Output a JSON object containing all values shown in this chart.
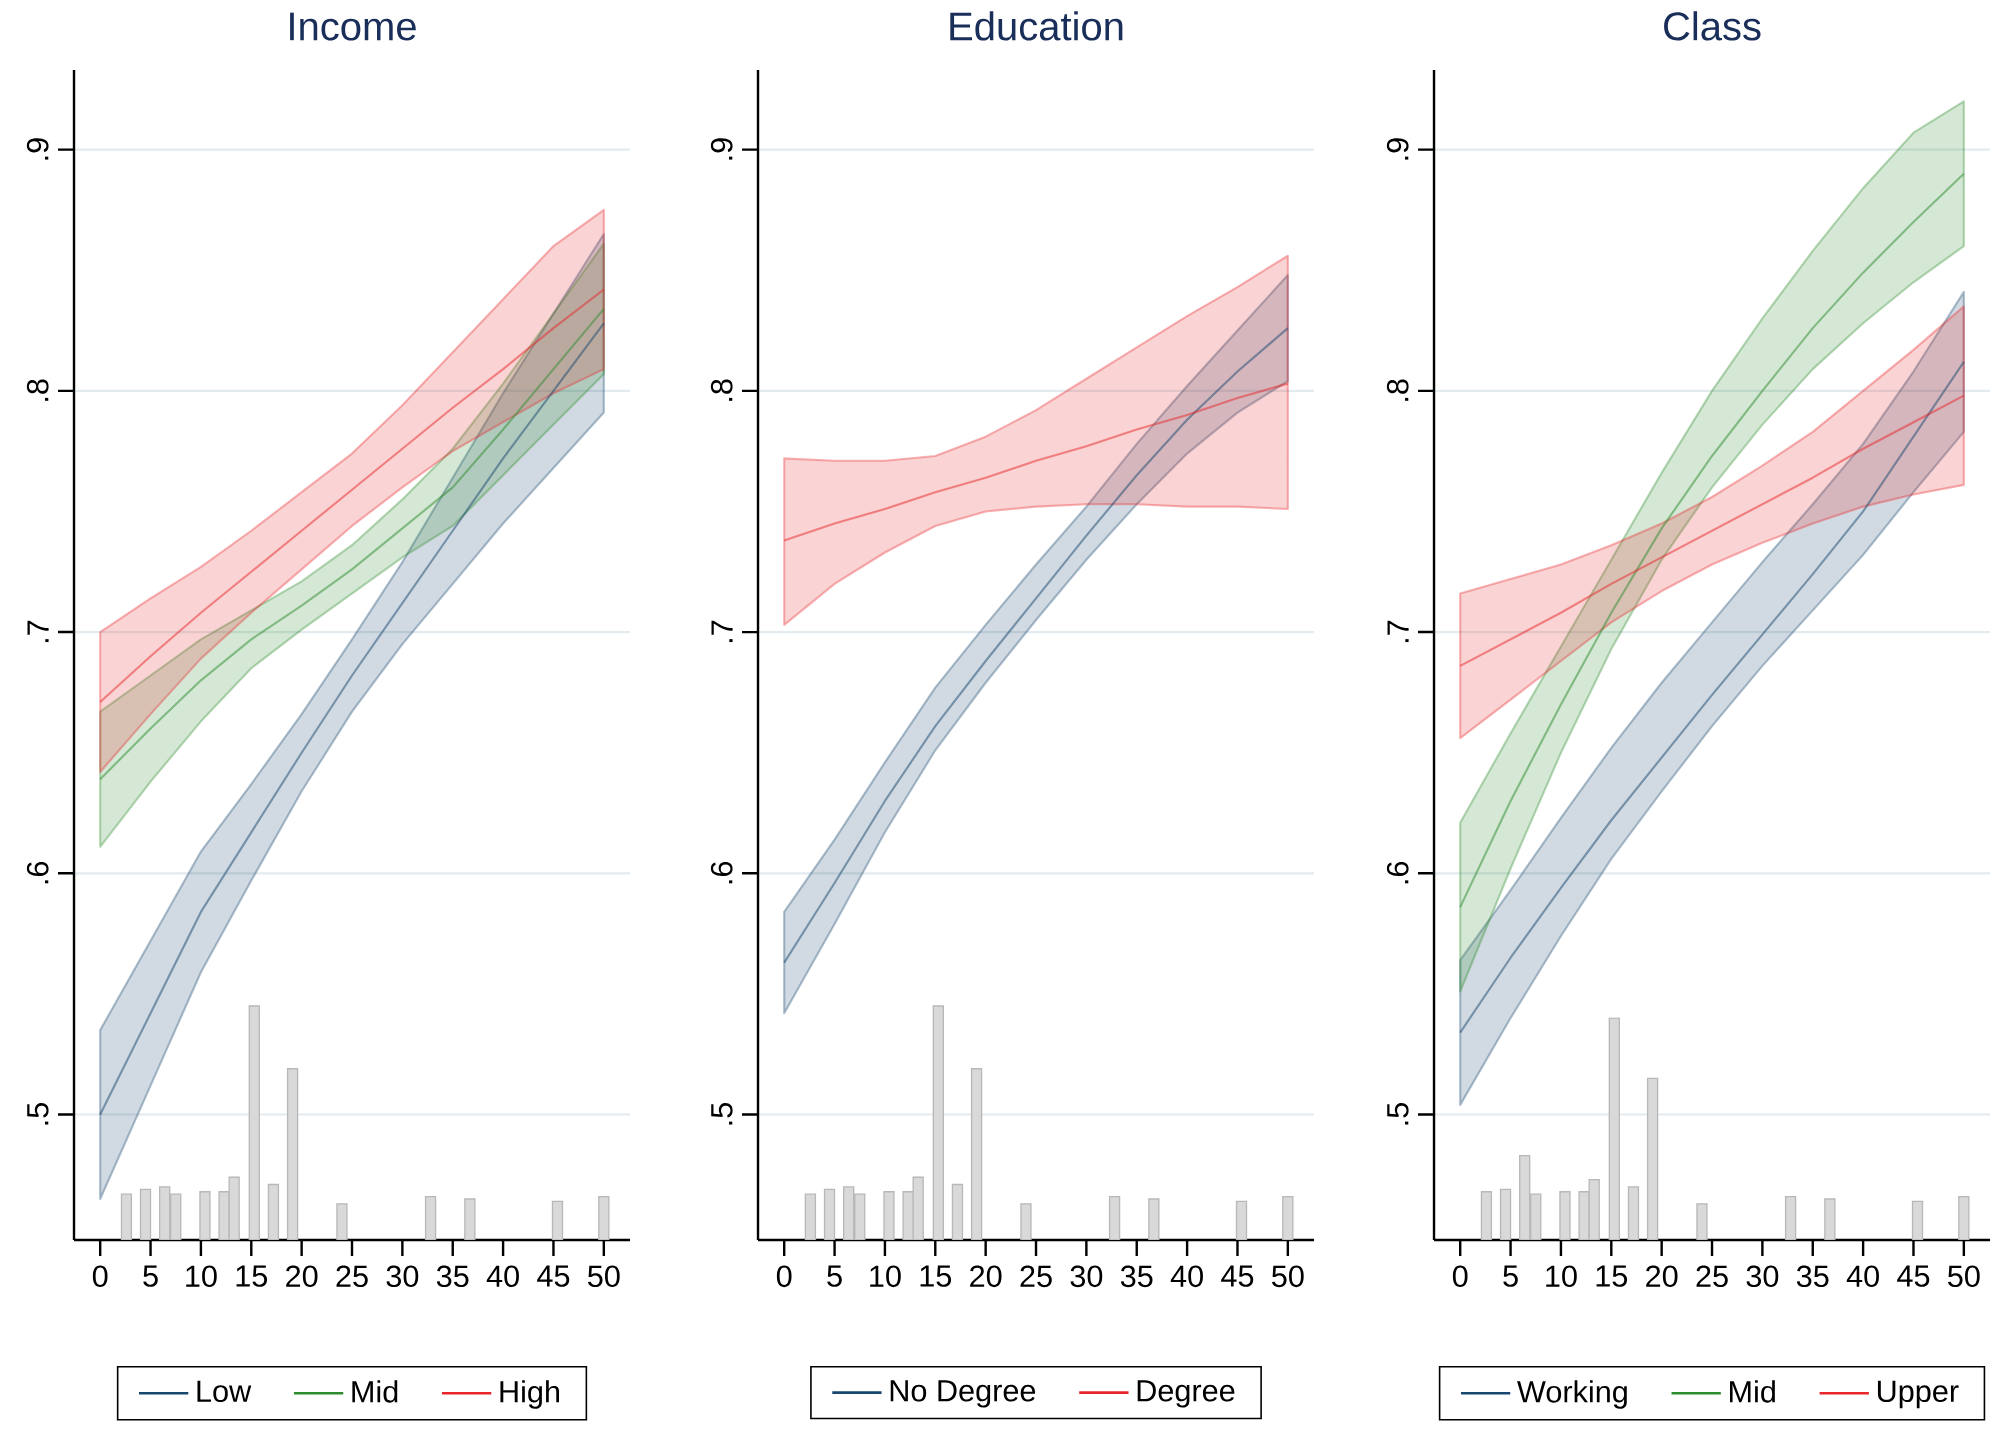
{
  "chart_data": [
    {
      "type": "line",
      "title": "Income",
      "x": [
        0,
        5,
        10,
        15,
        20,
        25,
        30,
        35,
        40,
        45,
        50
      ],
      "xlim": [
        -2.6,
        52.6
      ],
      "ylim": [
        0.448,
        0.933
      ],
      "xticks": [
        0,
        5,
        10,
        15,
        20,
        25,
        30,
        35,
        40,
        45,
        50
      ],
      "yticks": [
        {
          "value": 0.5,
          "label": ".5"
        },
        {
          "value": 0.6,
          "label": ".6"
        },
        {
          "value": 0.7,
          "label": ".7"
        },
        {
          "value": 0.8,
          "label": ".8"
        },
        {
          "value": 0.9,
          "label": ".9"
        }
      ],
      "grid": "y",
      "legend": "bottom",
      "series": [
        {
          "type": "bar",
          "color": "#d9d9d9",
          "x": [
            2.6,
            4.5,
            6.4,
            7.5,
            10.4,
            12.3,
            13.3,
            15.3,
            17.2,
            19.1,
            24,
            32.8,
            36.7,
            45.4,
            50
          ],
          "values": [
            0.467,
            0.469,
            0.47,
            0.467,
            0.468,
            0.468,
            0.474,
            0.545,
            0.471,
            0.519,
            0.463,
            0.466,
            0.465,
            0.464,
            0.466
          ]
        },
        {
          "name": "Low",
          "color": "#1a476f",
          "values": [
            0.5,
            0.542,
            0.584,
            0.617,
            0.65,
            0.682,
            0.712,
            0.742,
            0.772,
            0.8,
            0.828
          ],
          "lower": [
            0.465,
            0.512,
            0.559,
            0.597,
            0.634,
            0.667,
            0.695,
            0.72,
            0.745,
            0.768,
            0.791
          ],
          "upper": [
            0.535,
            0.572,
            0.609,
            0.637,
            0.666,
            0.697,
            0.729,
            0.764,
            0.799,
            0.832,
            0.865
          ]
        },
        {
          "name": "Mid",
          "color": "#2e8b2e",
          "values": [
            0.639,
            0.66,
            0.68,
            0.697,
            0.711,
            0.726,
            0.743,
            0.76,
            0.784,
            0.809,
            0.834
          ],
          "lower": [
            0.611,
            0.638,
            0.663,
            0.685,
            0.701,
            0.716,
            0.731,
            0.744,
            0.765,
            0.786,
            0.807
          ],
          "upper": [
            0.667,
            0.682,
            0.697,
            0.709,
            0.721,
            0.736,
            0.755,
            0.776,
            0.803,
            0.832,
            0.861
          ]
        },
        {
          "name": "High",
          "color": "#e8262a",
          "values": [
            0.671,
            0.69,
            0.708,
            0.725,
            0.742,
            0.759,
            0.776,
            0.793,
            0.809,
            0.826,
            0.842
          ],
          "lower": [
            0.642,
            0.666,
            0.689,
            0.708,
            0.726,
            0.744,
            0.76,
            0.775,
            0.787,
            0.799,
            0.809
          ],
          "upper": [
            0.7,
            0.714,
            0.727,
            0.742,
            0.758,
            0.774,
            0.794,
            0.816,
            0.838,
            0.86,
            0.875
          ]
        }
      ]
    },
    {
      "type": "line",
      "title": "Education",
      "x": [
        0,
        5,
        10,
        15,
        20,
        25,
        30,
        35,
        40,
        45,
        50
      ],
      "xlim": [
        -2.6,
        52.6
      ],
      "ylim": [
        0.448,
        0.933
      ],
      "xticks": [
        0,
        5,
        10,
        15,
        20,
        25,
        30,
        35,
        40,
        45,
        50
      ],
      "yticks": [
        {
          "value": 0.5,
          "label": ".5"
        },
        {
          "value": 0.6,
          "label": ".6"
        },
        {
          "value": 0.7,
          "label": ".7"
        },
        {
          "value": 0.8,
          "label": ".8"
        },
        {
          "value": 0.9,
          "label": ".9"
        }
      ],
      "grid": "y",
      "legend": "bottom",
      "series": [
        {
          "type": "bar",
          "color": "#d9d9d9",
          "x": [
            2.6,
            4.5,
            6.4,
            7.5,
            10.4,
            12.3,
            13.3,
            15.3,
            17.2,
            19.1,
            24,
            32.8,
            36.7,
            45.4,
            50
          ],
          "values": [
            0.467,
            0.469,
            0.47,
            0.467,
            0.468,
            0.468,
            0.474,
            0.545,
            0.471,
            0.519,
            0.463,
            0.466,
            0.465,
            0.464,
            0.466
          ]
        },
        {
          "name": "No Degree",
          "color": "#1a476f",
          "values": [
            0.563,
            0.596,
            0.63,
            0.661,
            0.688,
            0.714,
            0.74,
            0.765,
            0.788,
            0.808,
            0.826
          ],
          "lower": [
            0.542,
            0.579,
            0.617,
            0.651,
            0.679,
            0.705,
            0.73,
            0.753,
            0.774,
            0.791,
            0.804
          ],
          "upper": [
            0.584,
            0.614,
            0.646,
            0.677,
            0.703,
            0.728,
            0.752,
            0.778,
            0.802,
            0.825,
            0.848
          ]
        },
        {
          "name": "Degree",
          "color": "#e8262a",
          "values": [
            0.738,
            0.745,
            0.751,
            0.758,
            0.764,
            0.771,
            0.777,
            0.784,
            0.79,
            0.797,
            0.803
          ],
          "lower": [
            0.703,
            0.72,
            0.733,
            0.744,
            0.75,
            0.752,
            0.753,
            0.753,
            0.752,
            0.752,
            0.751
          ],
          "upper": [
            0.772,
            0.771,
            0.771,
            0.773,
            0.781,
            0.792,
            0.805,
            0.818,
            0.831,
            0.843,
            0.856
          ]
        }
      ]
    },
    {
      "type": "line",
      "title": "Class",
      "x": [
        0,
        5,
        10,
        15,
        20,
        25,
        30,
        35,
        40,
        45,
        50
      ],
      "xlim": [
        -2.6,
        52.6
      ],
      "ylim": [
        0.448,
        0.933
      ],
      "xticks": [
        0,
        5,
        10,
        15,
        20,
        25,
        30,
        35,
        40,
        45,
        50
      ],
      "yticks": [
        {
          "value": 0.5,
          "label": ".5"
        },
        {
          "value": 0.6,
          "label": ".6"
        },
        {
          "value": 0.7,
          "label": ".7"
        },
        {
          "value": 0.8,
          "label": ".8"
        },
        {
          "value": 0.9,
          "label": ".9"
        }
      ],
      "grid": "y",
      "legend": "bottom",
      "series": [
        {
          "type": "bar",
          "color": "#d9d9d9",
          "x": [
            2.6,
            4.5,
            6.4,
            7.5,
            10.4,
            12.3,
            13.3,
            15.3,
            17.2,
            19.1,
            24,
            32.8,
            36.7,
            45.4,
            50
          ],
          "values": [
            0.468,
            0.469,
            0.483,
            0.467,
            0.468,
            0.468,
            0.473,
            0.54,
            0.47,
            0.515,
            0.463,
            0.466,
            0.465,
            0.464,
            0.466
          ]
        },
        {
          "name": "Working",
          "color": "#1a476f",
          "values": [
            0.534,
            0.565,
            0.594,
            0.622,
            0.648,
            0.674,
            0.699,
            0.724,
            0.75,
            0.781,
            0.812
          ],
          "lower": [
            0.504,
            0.54,
            0.574,
            0.606,
            0.634,
            0.661,
            0.686,
            0.709,
            0.732,
            0.758,
            0.783
          ],
          "upper": [
            0.564,
            0.593,
            0.623,
            0.652,
            0.679,
            0.704,
            0.729,
            0.753,
            0.778,
            0.808,
            0.841
          ]
        },
        {
          "name": "Mid",
          "color": "#2e8b2e",
          "values": [
            0.586,
            0.63,
            0.67,
            0.708,
            0.743,
            0.773,
            0.8,
            0.826,
            0.849,
            0.87,
            0.89
          ],
          "lower": [
            0.551,
            0.602,
            0.65,
            0.693,
            0.73,
            0.76,
            0.786,
            0.809,
            0.828,
            0.845,
            0.86
          ],
          "upper": [
            0.621,
            0.658,
            0.694,
            0.73,
            0.766,
            0.8,
            0.83,
            0.858,
            0.884,
            0.907,
            0.92
          ]
        },
        {
          "name": "Upper",
          "color": "#e8262a",
          "values": [
            0.686,
            0.697,
            0.708,
            0.72,
            0.731,
            0.742,
            0.753,
            0.764,
            0.776,
            0.787,
            0.798
          ],
          "lower": [
            0.656,
            0.672,
            0.688,
            0.704,
            0.717,
            0.728,
            0.737,
            0.745,
            0.752,
            0.757,
            0.761
          ],
          "upper": [
            0.716,
            0.722,
            0.728,
            0.736,
            0.745,
            0.756,
            0.769,
            0.783,
            0.8,
            0.817,
            0.835
          ]
        }
      ]
    }
  ]
}
